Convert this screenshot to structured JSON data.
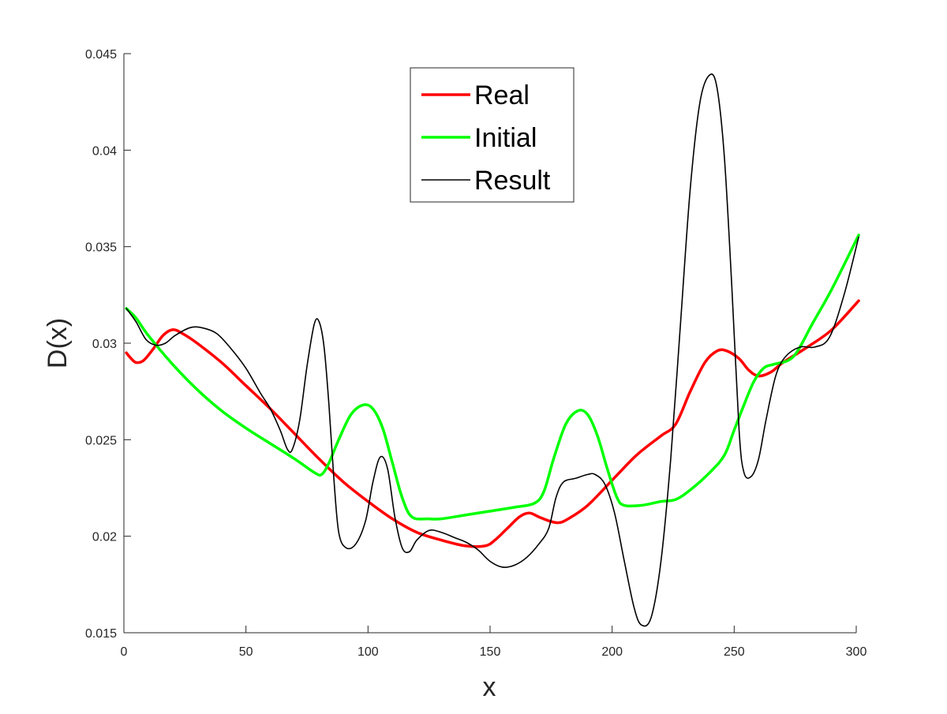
{
  "chart_data": {
    "type": "line",
    "title": "",
    "xlabel": "x",
    "ylabel": "D(x)",
    "xlim": [
      0,
      300
    ],
    "ylim": [
      0.015,
      0.045
    ],
    "xticks": [
      0,
      50,
      100,
      150,
      200,
      250,
      300
    ],
    "yticks": [
      0.015,
      0.02,
      0.025,
      0.03,
      0.035,
      0.04,
      0.045
    ],
    "xtick_labels": [
      "0",
      "50",
      "100",
      "150",
      "200",
      "250",
      "300"
    ],
    "ytick_labels": [
      "0.015",
      "0.02",
      "0.025",
      "0.03",
      "0.035",
      "0.04",
      "0.045"
    ],
    "grid": false,
    "legend_position": "top-center",
    "series": [
      {
        "name": "Real",
        "color": "#ff0000",
        "width": 3.5,
        "points": [
          [
            1,
            0.0295
          ],
          [
            3,
            0.0292
          ],
          [
            5,
            0.029
          ],
          [
            8,
            0.0291
          ],
          [
            12,
            0.0297
          ],
          [
            16,
            0.0304
          ],
          [
            20,
            0.0307
          ],
          [
            24,
            0.0305
          ],
          [
            30,
            0.03
          ],
          [
            40,
            0.029
          ],
          [
            50,
            0.0278
          ],
          [
            60,
            0.0266
          ],
          [
            70,
            0.0253
          ],
          [
            80,
            0.024
          ],
          [
            90,
            0.0228
          ],
          [
            100,
            0.0218
          ],
          [
            110,
            0.0209
          ],
          [
            120,
            0.0202
          ],
          [
            130,
            0.0198
          ],
          [
            140,
            0.0195
          ],
          [
            148,
            0.0195
          ],
          [
            152,
            0.0198
          ],
          [
            157,
            0.0204
          ],
          [
            162,
            0.021
          ],
          [
            166,
            0.0212
          ],
          [
            170,
            0.021
          ],
          [
            174,
            0.0208
          ],
          [
            178,
            0.0207
          ],
          [
            182,
            0.0209
          ],
          [
            190,
            0.0216
          ],
          [
            200,
            0.0229
          ],
          [
            210,
            0.0242
          ],
          [
            220,
            0.0252
          ],
          [
            226,
            0.0258
          ],
          [
            232,
            0.0275
          ],
          [
            238,
            0.029
          ],
          [
            243,
            0.0296
          ],
          [
            247,
            0.0296
          ],
          [
            252,
            0.0292
          ],
          [
            256,
            0.0286
          ],
          [
            260,
            0.0283
          ],
          [
            265,
            0.0285
          ],
          [
            270,
            0.029
          ],
          [
            280,
            0.0298
          ],
          [
            290,
            0.0307
          ],
          [
            301,
            0.0322
          ]
        ]
      },
      {
        "name": "Initial",
        "color": "#00ff00",
        "width": 3.5,
        "points": [
          [
            1,
            0.0318
          ],
          [
            5,
            0.0313
          ],
          [
            10,
            0.0304
          ],
          [
            20,
            0.0289
          ],
          [
            30,
            0.0276
          ],
          [
            40,
            0.0265
          ],
          [
            50,
            0.0256
          ],
          [
            60,
            0.0248
          ],
          [
            70,
            0.024
          ],
          [
            78,
            0.0233
          ],
          [
            81,
            0.0232
          ],
          [
            84,
            0.0238
          ],
          [
            88,
            0.025
          ],
          [
            93,
            0.0263
          ],
          [
            98,
            0.0268
          ],
          [
            102,
            0.0266
          ],
          [
            106,
            0.0256
          ],
          [
            110,
            0.0238
          ],
          [
            114,
            0.022
          ],
          [
            118,
            0.021
          ],
          [
            125,
            0.0209
          ],
          [
            130,
            0.0209
          ],
          [
            140,
            0.0211
          ],
          [
            150,
            0.0213
          ],
          [
            160,
            0.0215
          ],
          [
            168,
            0.0217
          ],
          [
            172,
            0.0223
          ],
          [
            176,
            0.024
          ],
          [
            181,
            0.0258
          ],
          [
            186,
            0.0265
          ],
          [
            190,
            0.0263
          ],
          [
            194,
            0.0252
          ],
          [
            198,
            0.0235
          ],
          [
            202,
            0.022
          ],
          [
            205,
            0.0216
          ],
          [
            212,
            0.0216
          ],
          [
            220,
            0.0218
          ],
          [
            226,
            0.0219
          ],
          [
            232,
            0.0224
          ],
          [
            240,
            0.0233
          ],
          [
            246,
            0.0242
          ],
          [
            250,
            0.0255
          ],
          [
            254,
            0.0268
          ],
          [
            258,
            0.028
          ],
          [
            262,
            0.0287
          ],
          [
            266,
            0.0289
          ],
          [
            272,
            0.0291
          ],
          [
            276,
            0.0296
          ],
          [
            282,
            0.031
          ],
          [
            290,
            0.0328
          ],
          [
            301,
            0.0356
          ]
        ]
      },
      {
        "name": "Result",
        "color": "#000000",
        "width": 1.6,
        "points": [
          [
            1,
            0.0318
          ],
          [
            5,
            0.0311
          ],
          [
            9,
            0.0302
          ],
          [
            13,
            0.0299
          ],
          [
            17,
            0.03
          ],
          [
            21,
            0.0304
          ],
          [
            27,
            0.0308
          ],
          [
            32,
            0.0308
          ],
          [
            38,
            0.0305
          ],
          [
            44,
            0.0297
          ],
          [
            50,
            0.0287
          ],
          [
            56,
            0.0274
          ],
          [
            60,
            0.0266
          ],
          [
            64,
            0.0255
          ],
          [
            67,
            0.0245
          ],
          [
            69,
            0.0245
          ],
          [
            72,
            0.026
          ],
          [
            75,
            0.0288
          ],
          [
            78,
            0.031
          ],
          [
            80,
            0.0311
          ],
          [
            82,
            0.0298
          ],
          [
            84,
            0.0268
          ],
          [
            86,
            0.023
          ],
          [
            88,
            0.0202
          ],
          [
            91,
            0.0194
          ],
          [
            95,
            0.0196
          ],
          [
            99,
            0.0208
          ],
          [
            102,
            0.0228
          ],
          [
            105,
            0.0241
          ],
          [
            108,
            0.0235
          ],
          [
            111,
            0.021
          ],
          [
            114,
            0.0194
          ],
          [
            117,
            0.0192
          ],
          [
            120,
            0.0198
          ],
          [
            125,
            0.0203
          ],
          [
            130,
            0.0202
          ],
          [
            136,
            0.0199
          ],
          [
            140,
            0.0197
          ],
          [
            145,
            0.0193
          ],
          [
            150,
            0.0187
          ],
          [
            155,
            0.0184
          ],
          [
            160,
            0.0185
          ],
          [
            165,
            0.0189
          ],
          [
            170,
            0.0196
          ],
          [
            174,
            0.0204
          ],
          [
            177,
            0.022
          ],
          [
            180,
            0.0228
          ],
          [
            185,
            0.023
          ],
          [
            190,
            0.0232
          ],
          [
            193,
            0.0232
          ],
          [
            197,
            0.0227
          ],
          [
            201,
            0.0212
          ],
          [
            205,
            0.0187
          ],
          [
            209,
            0.0163
          ],
          [
            212,
            0.0154
          ],
          [
            216,
            0.0158
          ],
          [
            220,
            0.0187
          ],
          [
            224,
            0.024
          ],
          [
            228,
            0.031
          ],
          [
            232,
            0.038
          ],
          [
            236,
            0.0425
          ],
          [
            240,
            0.0439
          ],
          [
            243,
            0.0432
          ],
          [
            246,
            0.0396
          ],
          [
            249,
            0.033
          ],
          [
            252,
            0.0255
          ],
          [
            254,
            0.0233
          ],
          [
            257,
            0.0231
          ],
          [
            260,
            0.024
          ],
          [
            263,
            0.026
          ],
          [
            267,
            0.0283
          ],
          [
            271,
            0.0293
          ],
          [
            277,
            0.0298
          ],
          [
            283,
            0.0298
          ],
          [
            289,
            0.0303
          ],
          [
            295,
            0.0325
          ],
          [
            301,
            0.0355
          ]
        ]
      }
    ]
  }
}
